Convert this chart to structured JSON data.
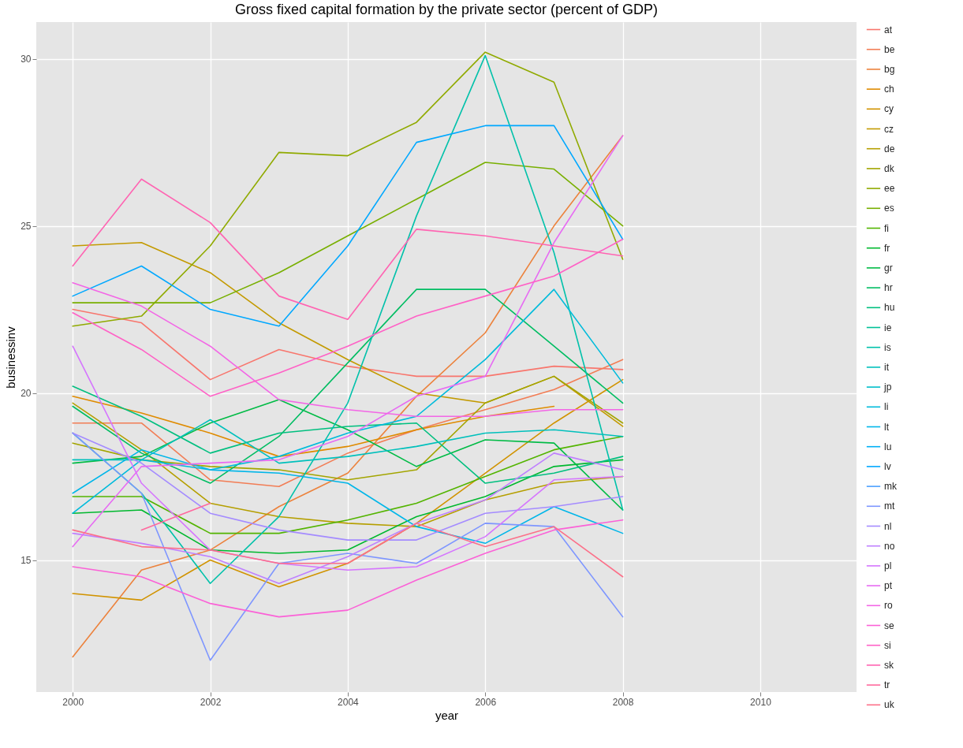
{
  "chart_data": {
    "type": "line",
    "title": "Gross fixed capital formation by the private sector (percent of GDP)",
    "xlabel": "year",
    "ylabel": "businessinv",
    "x": [
      2000,
      2001,
      2002,
      2003,
      2004,
      2005,
      2006,
      2007,
      2008
    ],
    "xlim": [
      1999.47,
      2011.4
    ],
    "xticks": [
      2000,
      2002,
      2004,
      2006,
      2008,
      2010
    ],
    "ylim": [
      11.05,
      31.1
    ],
    "yticks": [
      15,
      20,
      25,
      30
    ],
    "grid": true,
    "legend": "right",
    "series": [
      {
        "name": "at",
        "color": "#f8766d",
        "values": [
          22.5,
          22.1,
          20.4,
          21.3,
          20.8,
          20.5,
          20.5,
          20.8,
          20.7
        ]
      },
      {
        "name": "be",
        "color": "#f27d55",
        "values": [
          19.1,
          19.1,
          17.4,
          17.2,
          18.2,
          18.9,
          19.5,
          20.1,
          21.0
        ]
      },
      {
        "name": "bg",
        "color": "#ec823c",
        "values": [
          12.1,
          14.7,
          15.3,
          16.6,
          17.6,
          19.9,
          21.8,
          25.0,
          27.7
        ]
      },
      {
        "name": "ch",
        "color": "#df8b00",
        "values": [
          19.9,
          19.4,
          18.8,
          18.1,
          18.4,
          18.9,
          19.3,
          19.6,
          null
        ]
      },
      {
        "name": "cy",
        "color": "#d19300",
        "values": [
          14.0,
          13.8,
          15.0,
          14.2,
          14.9,
          16.1,
          17.6,
          19.1,
          20.4
        ]
      },
      {
        "name": "cz",
        "color": "#c39a00",
        "values": [
          24.4,
          24.5,
          23.6,
          22.1,
          21.0,
          20.0,
          19.7,
          20.5,
          19.0
        ]
      },
      {
        "name": "de",
        "color": "#b59f00",
        "values": [
          19.7,
          18.3,
          16.7,
          16.3,
          16.1,
          16.0,
          16.8,
          17.3,
          17.5
        ]
      },
      {
        "name": "dk",
        "color": "#a3a500",
        "values": [
          18.5,
          18.0,
          17.8,
          17.7,
          17.4,
          17.7,
          19.7,
          20.5,
          19.1
        ]
      },
      {
        "name": "ee",
        "color": "#90aa00",
        "values": [
          22.0,
          22.3,
          24.4,
          27.2,
          27.1,
          28.1,
          30.2,
          29.3,
          24.0
        ]
      },
      {
        "name": "es",
        "color": "#78af00",
        "values": [
          22.7,
          22.7,
          22.7,
          23.6,
          24.7,
          25.8,
          26.9,
          26.7,
          25.0
        ]
      },
      {
        "name": "fi",
        "color": "#53b400",
        "values": [
          16.9,
          16.9,
          15.8,
          15.8,
          16.2,
          16.7,
          17.5,
          18.3,
          18.7
        ]
      },
      {
        "name": "fr",
        "color": "#00b82e",
        "values": [
          16.4,
          16.5,
          15.3,
          15.2,
          15.3,
          16.3,
          16.9,
          17.8,
          18.0
        ]
      },
      {
        "name": "gr",
        "color": "#00bb45",
        "values": [
          17.9,
          18.1,
          19.1,
          19.8,
          18.9,
          17.8,
          18.6,
          18.5,
          16.5
        ]
      },
      {
        "name": "hr",
        "color": "#00bd62",
        "values": [
          19.6,
          18.2,
          17.3,
          18.7,
          20.9,
          23.1,
          23.1,
          21.4,
          19.7
        ]
      },
      {
        "name": "hu",
        "color": "#00bf7f",
        "values": [
          20.2,
          19.3,
          18.2,
          18.8,
          19.0,
          19.1,
          17.3,
          17.6,
          18.1
        ]
      },
      {
        "name": "ie",
        "color": "#00c097",
        "values": [
          null,
          null,
          null,
          null,
          null,
          null,
          null,
          null,
          null
        ]
      },
      {
        "name": "is",
        "color": "#00c1aa",
        "values": [
          18.8,
          17.0,
          14.3,
          16.3,
          19.7,
          25.3,
          30.1,
          24.2,
          16.5
        ]
      },
      {
        "name": "it",
        "color": "#00c0bc",
        "values": [
          18.0,
          18.0,
          19.2,
          17.9,
          18.1,
          18.4,
          18.8,
          18.9,
          18.7
        ]
      },
      {
        "name": "jp",
        "color": "#00bfca",
        "values": [
          null,
          null,
          null,
          null,
          null,
          null,
          null,
          null,
          null
        ]
      },
      {
        "name": "li",
        "color": "#00bbdb",
        "values": [
          16.4,
          18.0,
          17.7,
          18.1,
          18.8,
          19.3,
          21.0,
          23.1,
          20.3
        ]
      },
      {
        "name": "lt",
        "color": "#00b6e9",
        "values": [
          17.0,
          18.3,
          17.7,
          17.6,
          17.3,
          16.0,
          15.5,
          16.6,
          15.8
        ]
      },
      {
        "name": "lu",
        "color": "#00b0f6",
        "values": [
          null,
          null,
          null,
          null,
          null,
          null,
          null,
          null,
          null
        ]
      },
      {
        "name": "lv",
        "color": "#00a8ff",
        "values": [
          22.9,
          23.8,
          22.5,
          22.0,
          24.4,
          27.5,
          28.0,
          28.0,
          24.6
        ]
      },
      {
        "name": "mk",
        "color": "#4ba0ff",
        "values": [
          null,
          null,
          null,
          null,
          null,
          null,
          null,
          null,
          null
        ]
      },
      {
        "name": "mt",
        "color": "#7e96ff",
        "values": [
          18.8,
          17.0,
          12.0,
          14.9,
          15.2,
          14.9,
          16.1,
          16.0,
          13.3
        ]
      },
      {
        "name": "nl",
        "color": "#a48bff",
        "values": [
          18.8,
          17.9,
          16.4,
          15.9,
          15.6,
          15.6,
          16.4,
          16.6,
          16.9
        ]
      },
      {
        "name": "no",
        "color": "#bf80ff",
        "values": [
          15.8,
          15.5,
          15.1,
          14.3,
          15.1,
          16.1,
          16.8,
          18.2,
          17.7
        ]
      },
      {
        "name": "pl",
        "color": "#d575fe",
        "values": [
          21.4,
          17.3,
          15.3,
          14.9,
          14.7,
          14.8,
          15.7,
          17.4,
          17.5
        ]
      },
      {
        "name": "pt",
        "color": "#e76bf3",
        "values": [
          15.4,
          17.8,
          17.9,
          18.0,
          18.7,
          19.9,
          20.5,
          24.5,
          27.7
        ]
      },
      {
        "name": "ro",
        "color": "#f366e6",
        "values": [
          23.3,
          22.6,
          21.4,
          19.8,
          19.5,
          19.3,
          19.3,
          19.5,
          19.5
        ]
      },
      {
        "name": "se",
        "color": "#fb61d7",
        "values": [
          14.8,
          14.5,
          13.7,
          13.3,
          13.5,
          14.4,
          15.2,
          15.9,
          16.2
        ]
      },
      {
        "name": "si",
        "color": "#ff61c6",
        "values": [
          22.4,
          21.3,
          19.9,
          20.6,
          21.4,
          22.3,
          22.9,
          23.5,
          24.6
        ]
      },
      {
        "name": "sk",
        "color": "#ff64b2",
        "values": [
          23.8,
          26.4,
          25.1,
          22.9,
          22.2,
          24.9,
          24.7,
          24.4,
          24.1
        ]
      },
      {
        "name": "tr",
        "color": "#ff699e",
        "values": [
          null,
          15.9,
          16.7,
          null,
          null,
          null,
          null,
          null,
          null
        ]
      },
      {
        "name": "uk",
        "color": "#fc7089",
        "values": [
          15.9,
          15.4,
          15.3,
          14.9,
          14.9,
          16.1,
          15.4,
          16.0,
          14.5
        ]
      }
    ]
  }
}
